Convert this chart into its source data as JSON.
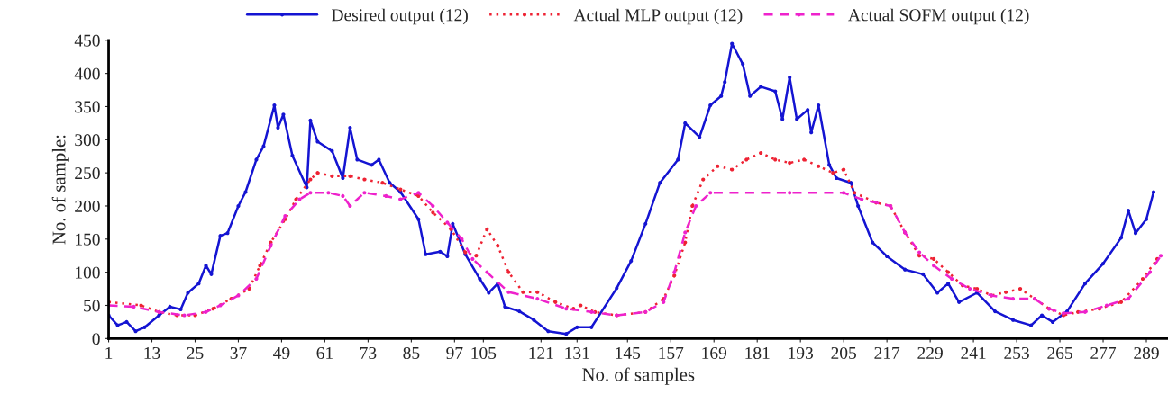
{
  "chart_data": {
    "type": "line",
    "xlabel": "No. of samples",
    "ylabel": "No. of sample:",
    "xlim": [
      1,
      295
    ],
    "ylim": [
      0,
      450
    ],
    "yticks": [
      0,
      50,
      100,
      150,
      200,
      250,
      300,
      350,
      400,
      450
    ],
    "xticks": [
      1,
      13,
      25,
      37,
      49,
      61,
      73,
      85,
      97,
      105,
      121,
      131,
      145,
      157,
      169,
      181,
      193,
      205,
      217,
      229,
      241,
      253,
      265,
      277,
      289
    ],
    "grid": false,
    "legend": "top",
    "series": [
      {
        "name": "Desired output (12)",
        "color": "#1414d2",
        "line_style": "solid",
        "marker": "circle",
        "x": [
          1,
          3.5,
          6,
          8.5,
          11,
          15,
          18,
          21,
          23,
          26,
          28,
          29.5,
          32,
          34,
          37,
          39,
          42,
          44,
          47,
          48,
          49.5,
          52,
          56,
          57,
          59,
          63,
          66,
          68,
          70,
          74,
          76,
          79,
          82,
          87,
          89,
          93,
          95,
          96.5,
          100,
          104,
          106.5,
          109,
          111,
          115,
          119,
          123,
          128,
          131,
          135,
          142,
          146,
          150,
          154,
          159,
          161,
          165,
          168,
          171,
          172,
          174,
          177,
          179,
          182,
          186,
          188,
          190,
          192,
          195,
          196,
          198,
          201,
          203,
          207,
          209,
          213,
          217,
          222,
          227,
          231,
          234,
          237,
          242,
          247,
          252,
          257,
          260,
          263,
          267,
          272,
          277,
          282,
          284,
          286,
          289,
          291
        ],
        "values": [
          35,
          20,
          25,
          11,
          17,
          35,
          48,
          44,
          69,
          83,
          110,
          97,
          155,
          159,
          200,
          221,
          270,
          290,
          352,
          318,
          338,
          276,
          228,
          329,
          297,
          283,
          242,
          318,
          270,
          262,
          270,
          235,
          221,
          180,
          127,
          131,
          124,
          173,
          127,
          90,
          69,
          83,
          48,
          41,
          28,
          11,
          7,
          17,
          17,
          76,
          117,
          173,
          235,
          270,
          325,
          304,
          352,
          366,
          387,
          445,
          414,
          366,
          380,
          373,
          331,
          394,
          331,
          345,
          311,
          352,
          262,
          242,
          235,
          200,
          145,
          124,
          104,
          97,
          69,
          83,
          55,
          69,
          41,
          28,
          20,
          35,
          25,
          41,
          83,
          113,
          152,
          193,
          159,
          180,
          221
        ]
      },
      {
        "name": "Actual MLP output (12)",
        "color": "#ee2233",
        "line_style": "dotted",
        "marker": "circle",
        "x": [
          1,
          10,
          15,
          20,
          25,
          30,
          35,
          40,
          43,
          46,
          50,
          53,
          57,
          59,
          63,
          68,
          72,
          77,
          82,
          87,
          91,
          96,
          100,
          103,
          106,
          109,
          112,
          116,
          120,
          125,
          130,
          132,
          136,
          142,
          150,
          155,
          158,
          161,
          163,
          166,
          170,
          174,
          178,
          182,
          186,
          190,
          194,
          198,
          202,
          205,
          208,
          214,
          218,
          222,
          226,
          230,
          234,
          238,
          242,
          246,
          250,
          254,
          258,
          262,
          266,
          270,
          276,
          282,
          288,
          292
        ],
        "values": [
          55,
          50,
          40,
          35,
          35,
          45,
          60,
          75,
          110,
          145,
          180,
          210,
          240,
          250,
          245,
          245,
          240,
          235,
          225,
          215,
          190,
          165,
          130,
          125,
          165,
          140,
          100,
          70,
          70,
          55,
          45,
          50,
          40,
          35,
          40,
          60,
          95,
          145,
          200,
          240,
          260,
          255,
          270,
          280,
          270,
          265,
          270,
          260,
          250,
          255,
          220,
          205,
          200,
          160,
          125,
          120,
          100,
          80,
          75,
          65,
          70,
          75,
          60,
          45,
          35,
          40,
          45,
          55,
          90,
          120
        ]
      },
      {
        "name": "Actual SOFM output (12)",
        "color": "#ee22cc",
        "line_style": "dashed",
        "marker": "circle",
        "x": [
          1,
          8,
          15,
          22,
          28,
          32,
          37,
          42,
          46,
          50,
          54,
          57,
          62,
          66,
          68,
          72,
          78,
          82,
          87,
          91,
          95,
          99,
          102,
          106,
          112,
          120,
          128,
          135,
          142,
          150,
          155,
          158,
          161,
          164,
          168,
          190,
          205,
          210,
          218,
          222,
          226,
          230,
          235,
          240,
          246,
          252,
          258,
          262,
          266,
          272,
          278,
          284,
          290,
          293
        ],
        "values": [
          50,
          48,
          40,
          35,
          40,
          50,
          65,
          90,
          140,
          185,
          210,
          220,
          220,
          215,
          200,
          220,
          215,
          210,
          220,
          200,
          175,
          150,
          120,
          100,
          70,
          60,
          45,
          40,
          35,
          40,
          55,
          100,
          160,
          200,
          220,
          220,
          220,
          210,
          200,
          160,
          130,
          110,
          90,
          75,
          65,
          60,
          60,
          45,
          38,
          40,
          50,
          60,
          100,
          125
        ]
      }
    ]
  }
}
